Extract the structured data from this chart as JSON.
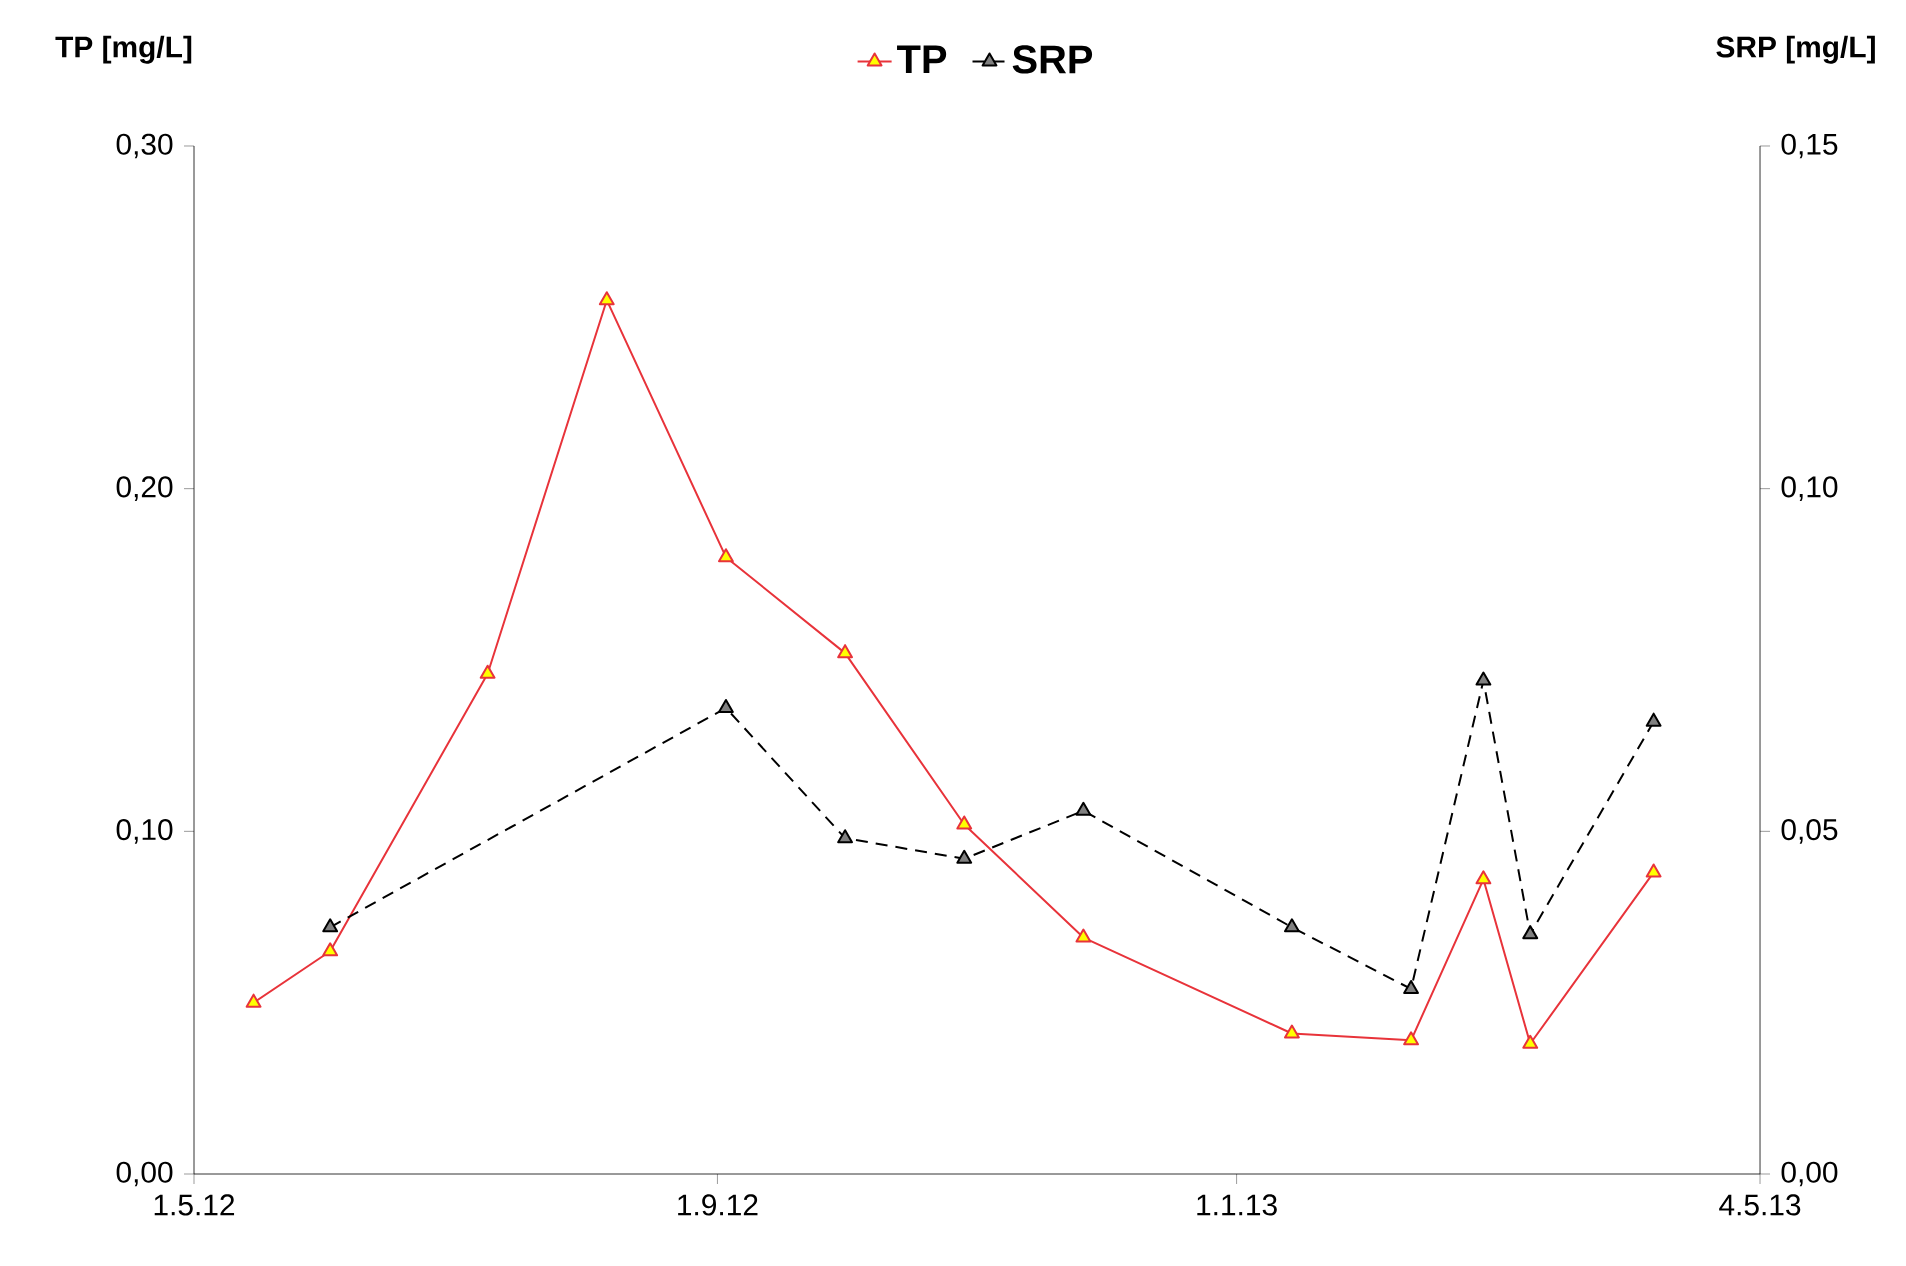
{
  "chart_data": {
    "type": "line",
    "ylabel": "TP [mg/L]",
    "y2label": "SRP [mg/L]",
    "xlim": [
      "2012-05-01",
      "2013-05-04"
    ],
    "xticks": [
      {
        "value": "2012-05-01",
        "label": "1.5.12"
      },
      {
        "value": "2012-09-01",
        "label": "1.9.12"
      },
      {
        "value": "2013-01-01",
        "label": "1.1.13"
      },
      {
        "value": "2013-05-04",
        "label": "4.5.13"
      }
    ],
    "ylim": [
      0,
      0.3
    ],
    "yticks": [
      {
        "value": 0,
        "label": "0,00"
      },
      {
        "value": 0.1,
        "label": "0,10"
      },
      {
        "value": 0.2,
        "label": "0,20"
      },
      {
        "value": 0.3,
        "label": "0,30"
      }
    ],
    "y2lim": [
      0,
      0.15
    ],
    "y2ticks": [
      {
        "value": 0,
        "label": "0,00"
      },
      {
        "value": 0.05,
        "label": "0,05"
      },
      {
        "value": 0.1,
        "label": "0,10"
      },
      {
        "value": 0.15,
        "label": "0,15"
      }
    ],
    "grid": false,
    "legend": "top",
    "marker": "triangle",
    "series": [
      {
        "name": "TP",
        "color": "#e8333a",
        "line_style": "solid",
        "x": [
          "2012-05-15",
          "2012-06-02",
          "2012-07-09",
          "2012-08-06",
          "2012-09-03",
          "2012-10-01",
          "2012-10-29",
          "2012-11-26",
          "2013-01-14",
          "2013-02-11",
          "2013-02-28",
          "2013-03-11",
          "2013-04-09"
        ],
        "values": [
          0.05,
          0.065,
          0.146,
          0.255,
          0.18,
          0.152,
          0.102,
          0.069,
          0.041,
          0.039,
          0.086,
          0.038,
          0.088
        ]
      },
      {
        "name": "SRP",
        "color": "#000000",
        "line_style": "dashed",
        "axis": "y2",
        "x": [
          "2012-06-02",
          "2012-09-03",
          "2012-10-01",
          "2012-10-29",
          "2012-11-26",
          "2013-01-14",
          "2013-02-11",
          "2013-02-28",
          "2013-03-11",
          "2013-04-09"
        ],
        "values": [
          0.036,
          0.068,
          0.049,
          0.046,
          0.053,
          0.036,
          0.027,
          0.072,
          0.035,
          0.066
        ]
      }
    ]
  }
}
